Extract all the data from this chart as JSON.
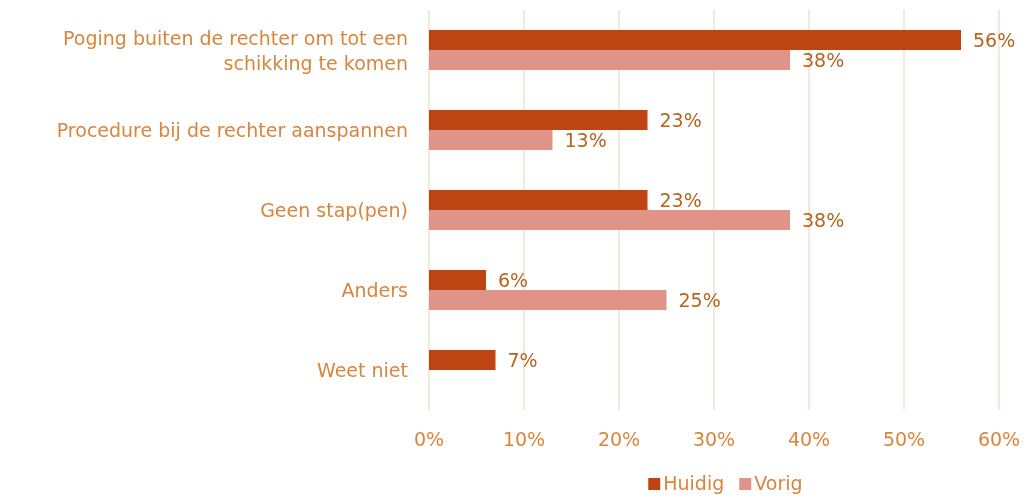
{
  "chart_data": {
    "type": "bar",
    "orientation": "horizontal",
    "categories": [
      "Poging buiten de rechter om tot een schikking te komen",
      "Procedure bij de rechter aanspannen",
      "Geen stap(pen)",
      "Anders",
      "Weet niet"
    ],
    "series": [
      {
        "name": "Huidig",
        "color": "#be4513",
        "values": [
          56,
          23,
          23,
          6,
          7
        ],
        "value_labels": [
          "56%",
          "23%",
          "23%",
          "6%",
          "7%"
        ]
      },
      {
        "name": "Vorig",
        "color": "#e09488",
        "values": [
          38,
          13,
          38,
          25,
          null
        ],
        "value_labels": [
          "38%",
          "13%",
          "38%",
          "25%",
          null
        ]
      }
    ],
    "xlim": [
      0,
      60
    ],
    "xticks": [
      {
        "value": 0,
        "label": "0%"
      },
      {
        "value": 10,
        "label": "10%"
      },
      {
        "value": 20,
        "label": "20%"
      },
      {
        "value": 30,
        "label": "30%"
      },
      {
        "value": 40,
        "label": "40%"
      },
      {
        "value": 50,
        "label": "50%"
      },
      {
        "value": 60,
        "label": "60%"
      }
    ],
    "grid": "x",
    "legend": "bottom"
  }
}
